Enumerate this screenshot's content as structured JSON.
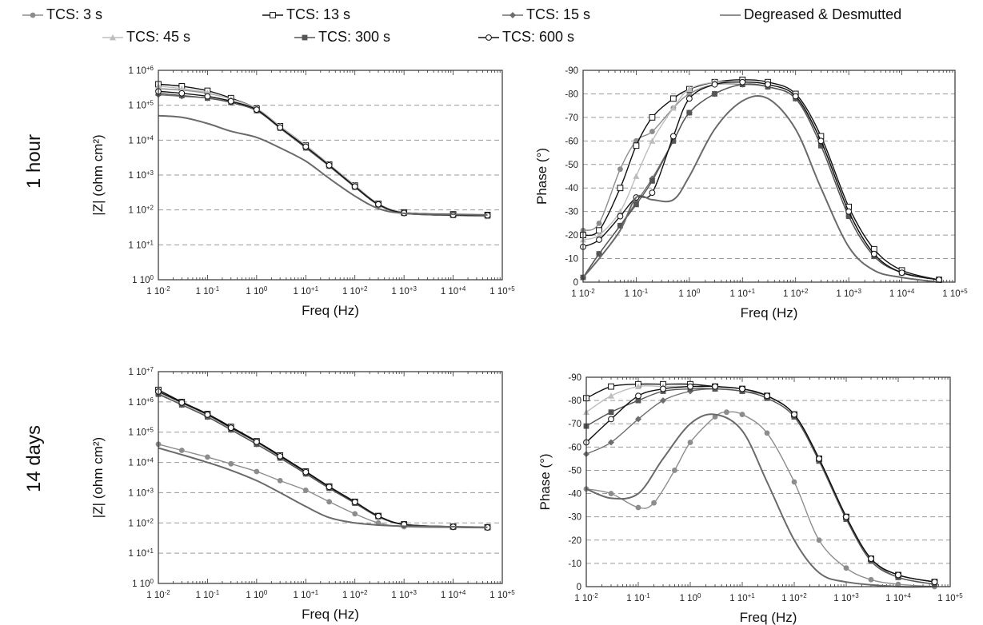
{
  "legend": [
    {
      "name": "TCS: 3 s",
      "color": "#8c8c8c",
      "marker": "circle-filled"
    },
    {
      "name": "TCS: 13 s",
      "color": "#111111",
      "marker": "square-open"
    },
    {
      "name": "TCS: 15 s",
      "color": "#6e6e6e",
      "marker": "diamond-filled"
    },
    {
      "name": "Degreased & Desmutted",
      "color": "#6a6a6a",
      "marker": "none"
    },
    {
      "name": "TCS: 45 s",
      "color": "#bdbdbd",
      "marker": "triangle-filled"
    },
    {
      "name": "TCS: 300 s",
      "color": "#555555",
      "marker": "square-filled"
    },
    {
      "name": "TCS: 600 s",
      "color": "#111111",
      "marker": "circle-open"
    }
  ],
  "row_labels": [
    "1 hour",
    "14 days"
  ],
  "chart_data": [
    {
      "id": "z-1h",
      "type": "line",
      "log_x": true,
      "log_y": true,
      "xlabel": "Freq (Hz)",
      "ylabel": "|Z| (ohm cm²)",
      "xlim": [
        0.01,
        100000
      ],
      "ylim": [
        1,
        1000000
      ],
      "x_ticks": [
        "1 10-2",
        "1 10-1",
        "1 100",
        "1 10+1",
        "1 10+2",
        "1 10+3",
        "1 10+4",
        "1 10+5"
      ],
      "y_ticks": [
        "1 100",
        "1 10+1",
        "1 10+2",
        "1 10+3",
        "1 10+4",
        "1 10+5",
        "1 10+6"
      ],
      "series": [
        {
          "name": "TCS: 3 s",
          "x": [
            0.01,
            0.03,
            0.1,
            0.3,
            1,
            3,
            10,
            30,
            100,
            300,
            1000,
            10000,
            50000
          ],
          "y": [
            300000,
            270000,
            220000,
            150000,
            80000,
            25000,
            7000,
            2000,
            500,
            150,
            85,
            75,
            72
          ]
        },
        {
          "name": "TCS: 13 s",
          "x": [
            0.01,
            0.03,
            0.1,
            0.3,
            1,
            3,
            10,
            30,
            100,
            300,
            1000,
            10000,
            50000
          ],
          "y": [
            400000,
            350000,
            260000,
            160000,
            80000,
            25000,
            7000,
            2000,
            500,
            150,
            85,
            75,
            72
          ]
        },
        {
          "name": "TCS: 15 s",
          "x": [
            0.01,
            0.03,
            0.1,
            0.3,
            1,
            3,
            10,
            30,
            100,
            300,
            1000,
            10000,
            50000
          ],
          "y": [
            200000,
            180000,
            160000,
            120000,
            70000,
            22000,
            6000,
            1800,
            450,
            140,
            80,
            70,
            68
          ]
        },
        {
          "name": "TCS: 45 s",
          "x": [
            0.01,
            0.03,
            0.1,
            0.3,
            1,
            3,
            10,
            30,
            100,
            300,
            1000,
            10000,
            50000
          ],
          "y": [
            350000,
            300000,
            230000,
            150000,
            80000,
            25000,
            7000,
            2000,
            500,
            150,
            85,
            70,
            65
          ]
        },
        {
          "name": "TCS: 300 s",
          "x": [
            0.01,
            0.03,
            0.1,
            0.3,
            1,
            3,
            10,
            30,
            100,
            300,
            1000,
            10000,
            50000
          ],
          "y": [
            220000,
            190000,
            160000,
            120000,
            70000,
            22000,
            6000,
            1800,
            450,
            140,
            80,
            70,
            68
          ]
        },
        {
          "name": "TCS: 600 s",
          "x": [
            0.01,
            0.03,
            0.1,
            0.3,
            1,
            3,
            10,
            30,
            100,
            300,
            1000,
            10000,
            50000
          ],
          "y": [
            250000,
            220000,
            180000,
            130000,
            75000,
            23000,
            6500,
            1900,
            470,
            145,
            82,
            72,
            70
          ]
        },
        {
          "name": "Degreased & Desmutted",
          "x": [
            0.01,
            0.03,
            0.1,
            0.3,
            1,
            3,
            10,
            30,
            100,
            300,
            1000,
            10000,
            50000
          ],
          "y": [
            50000,
            45000,
            30000,
            18000,
            12000,
            6000,
            2500,
            800,
            250,
            110,
            80,
            75,
            72
          ]
        }
      ]
    },
    {
      "id": "ph-1h",
      "type": "line",
      "log_x": true,
      "xlabel": "Freq (Hz)",
      "ylabel": "Phase (°)",
      "xlim": [
        0.01,
        100000
      ],
      "ylim": [
        0,
        -90
      ],
      "x_ticks": [
        "1 10-2",
        "1 10-1",
        "1 100",
        "1 10+1",
        "1 10+2",
        "1 10+3",
        "1 10+4",
        "1 10+5"
      ],
      "y_ticks": [
        "0",
        "-10",
        "-20",
        "-30",
        "-40",
        "-50",
        "-60",
        "-70",
        "-80",
        "-90"
      ],
      "series": [
        {
          "name": "TCS: 3 s",
          "x": [
            0.01,
            0.02,
            0.05,
            0.1,
            0.2,
            0.5,
            1,
            3,
            10,
            30,
            100,
            300,
            1000,
            3000,
            10000,
            50000
          ],
          "y": [
            -22,
            -25,
            -48,
            -60,
            -64,
            -74,
            -80,
            -84,
            -84,
            -83,
            -78,
            -60,
            -30,
            -12,
            -4,
            -1
          ]
        },
        {
          "name": "TCS: 13 s",
          "x": [
            0.01,
            0.02,
            0.05,
            0.1,
            0.2,
            0.5,
            1,
            3,
            10,
            30,
            100,
            300,
            1000,
            3000,
            10000,
            50000
          ],
          "y": [
            -20,
            -22,
            -40,
            -58,
            -70,
            -78,
            -82,
            -85,
            -86,
            -85,
            -80,
            -62,
            -32,
            -14,
            -5,
            -1
          ]
        },
        {
          "name": "TCS: 15 s",
          "x": [
            0.01,
            0.02,
            0.05,
            0.1,
            0.2,
            0.5,
            1,
            3,
            10,
            30,
            100,
            300,
            1000,
            3000,
            10000,
            50000
          ],
          "y": [
            -2,
            -12,
            -24,
            -34,
            -44,
            -60,
            -72,
            -80,
            -84,
            -83,
            -78,
            -58,
            -28,
            -11,
            -4,
            -1
          ]
        },
        {
          "name": "TCS: 45 s",
          "x": [
            0.01,
            0.02,
            0.05,
            0.1,
            0.2,
            0.5,
            1,
            3,
            10,
            30,
            100,
            300,
            1000,
            3000,
            10000,
            50000
          ],
          "y": [
            -18,
            -20,
            -30,
            -45,
            -60,
            -74,
            -82,
            -85,
            -85,
            -84,
            -79,
            -60,
            -30,
            -12,
            -4,
            -1
          ]
        },
        {
          "name": "TCS: 300 s",
          "x": [
            0.01,
            0.02,
            0.05,
            0.1,
            0.2,
            0.5,
            1,
            3,
            10,
            30,
            100,
            300,
            1000,
            3000,
            10000,
            50000
          ],
          "y": [
            -2,
            -12,
            -24,
            -33,
            -43,
            -60,
            -72,
            -80,
            -84,
            -83,
            -78,
            -58,
            -28,
            -11,
            -4,
            -1
          ]
        },
        {
          "name": "TCS: 600 s",
          "x": [
            0.01,
            0.02,
            0.05,
            0.1,
            0.2,
            0.5,
            1,
            3,
            10,
            30,
            100,
            300,
            1000,
            3000,
            10000,
            50000
          ],
          "y": [
            -15,
            -18,
            -28,
            -36,
            -38,
            -62,
            -78,
            -84,
            -85,
            -84,
            -79,
            -60,
            -30,
            -12,
            -4,
            -1
          ]
        },
        {
          "name": "Degreased & Desmutted",
          "x": [
            0.01,
            0.02,
            0.05,
            0.1,
            0.2,
            0.5,
            1,
            3,
            10,
            30,
            100,
            300,
            1000,
            3000,
            10000,
            50000
          ],
          "y": [
            -2,
            -10,
            -22,
            -36,
            -35,
            -35,
            -45,
            -65,
            -77,
            -78,
            -65,
            -40,
            -15,
            -5,
            -2,
            0
          ]
        }
      ]
    },
    {
      "id": "z-14d",
      "type": "line",
      "log_x": true,
      "log_y": true,
      "xlabel": "Freq (Hz)",
      "ylabel": "|Z| (ohm cm²)",
      "xlim": [
        0.01,
        100000
      ],
      "ylim": [
        1,
        10000000
      ],
      "x_ticks": [
        "1 10-2",
        "1 10-1",
        "1 100",
        "1 10+1",
        "1 10+2",
        "1 10+3",
        "1 10+4",
        "1 10+5"
      ],
      "y_ticks": [
        "1 100",
        "1 10+1",
        "1 10+2",
        "1 10+3",
        "1 10+4",
        "1 10+5",
        "1 10+6",
        "1 10+7"
      ],
      "series": [
        {
          "name": "TCS: 3 s",
          "x": [
            0.01,
            0.03,
            0.1,
            0.3,
            1,
            3,
            10,
            30,
            100,
            300,
            1000,
            10000,
            50000
          ],
          "y": [
            40000,
            25000,
            15000,
            9000,
            5000,
            2500,
            1200,
            500,
            200,
            100,
            75,
            70,
            68
          ]
        },
        {
          "name": "TCS: 13 s",
          "x": [
            0.01,
            0.03,
            0.1,
            0.3,
            1,
            3,
            10,
            30,
            100,
            300,
            1000,
            10000,
            50000
          ],
          "y": [
            2500000,
            1000000,
            400000,
            150000,
            50000,
            17000,
            5000,
            1600,
            500,
            170,
            90,
            75,
            72
          ]
        },
        {
          "name": "TCS: 15 s",
          "x": [
            0.01,
            0.03,
            0.1,
            0.3,
            1,
            3,
            10,
            30,
            100,
            300,
            1000,
            10000,
            50000
          ],
          "y": [
            1800000,
            800000,
            320000,
            120000,
            40000,
            14000,
            4200,
            1400,
            450,
            160,
            88,
            74,
            70
          ]
        },
        {
          "name": "TCS: 45 s",
          "x": [
            0.01,
            0.03,
            0.1,
            0.3,
            1,
            3,
            10,
            30,
            100,
            300,
            1000,
            10000,
            50000
          ],
          "y": [
            2000000,
            900000,
            350000,
            130000,
            45000,
            15000,
            4500,
            1500,
            480,
            165,
            88,
            74,
            70
          ]
        },
        {
          "name": "TCS: 300 s",
          "x": [
            0.01,
            0.03,
            0.1,
            0.3,
            1,
            3,
            10,
            30,
            100,
            300,
            1000,
            10000,
            50000
          ],
          "y": [
            1800000,
            800000,
            320000,
            120000,
            40000,
            14000,
            4200,
            1400,
            450,
            160,
            88,
            74,
            70
          ]
        },
        {
          "name": "TCS: 600 s",
          "x": [
            0.01,
            0.03,
            0.1,
            0.3,
            1,
            3,
            10,
            30,
            100,
            300,
            1000,
            10000,
            50000
          ],
          "y": [
            2200000,
            950000,
            380000,
            140000,
            48000,
            16000,
            4800,
            1550,
            490,
            168,
            89,
            75,
            71
          ]
        },
        {
          "name": "Degreased & Desmutted",
          "x": [
            0.01,
            0.03,
            0.1,
            0.3,
            1,
            3,
            10,
            30,
            100,
            300,
            1000,
            10000,
            50000
          ],
          "y": [
            30000,
            18000,
            10000,
            5500,
            2500,
            1000,
            350,
            150,
            100,
            85,
            78,
            75,
            72
          ]
        }
      ]
    },
    {
      "id": "ph-14d",
      "type": "line",
      "log_x": true,
      "xlabel": "Freq (Hz)",
      "ylabel": "Phase (°)",
      "xlim": [
        0.01,
        100000
      ],
      "ylim": [
        0,
        -90
      ],
      "x_ticks": [
        "1 10-2",
        "1 10-1",
        "1 100",
        "1 10+1",
        "1 10+2",
        "1 10+3",
        "1 10+4",
        "1 10+5"
      ],
      "y_ticks": [
        "0",
        "-10",
        "-20",
        "-30",
        "-40",
        "-50",
        "-60",
        "-70",
        "-80",
        "-90"
      ],
      "series": [
        {
          "name": "TCS: 3 s",
          "x": [
            0.01,
            0.03,
            0.1,
            0.2,
            0.5,
            1,
            3,
            5,
            10,
            30,
            100,
            300,
            1000,
            3000,
            10000,
            50000
          ],
          "y": [
            -42,
            -40,
            -34,
            -36,
            -50,
            -62,
            -73,
            -75,
            -74,
            -66,
            -45,
            -20,
            -8,
            -3,
            -1,
            0
          ]
        },
        {
          "name": "TCS: 13 s",
          "x": [
            0.01,
            0.03,
            0.1,
            0.3,
            1,
            3,
            10,
            30,
            100,
            300,
            1000,
            3000,
            10000,
            50000
          ],
          "y": [
            -81,
            -86,
            -87,
            -87,
            -87,
            -86,
            -85,
            -82,
            -74,
            -55,
            -30,
            -12,
            -5,
            -2
          ]
        },
        {
          "name": "TCS: 15 s",
          "x": [
            0.01,
            0.03,
            0.1,
            0.3,
            1,
            3,
            10,
            30,
            100,
            300,
            1000,
            3000,
            10000,
            50000
          ],
          "y": [
            -57,
            -62,
            -72,
            -80,
            -84,
            -85,
            -84,
            -82,
            -74,
            -55,
            -30,
            -12,
            -4,
            -1
          ]
        },
        {
          "name": "TCS: 45 s",
          "x": [
            0.01,
            0.03,
            0.1,
            0.3,
            1,
            3,
            10,
            30,
            100,
            300,
            1000,
            3000,
            10000,
            50000
          ],
          "y": [
            -75,
            -82,
            -86,
            -86,
            -86,
            -85,
            -84,
            -81,
            -73,
            -54,
            -29,
            -11,
            -4,
            -1
          ]
        },
        {
          "name": "TCS: 300 s",
          "x": [
            0.01,
            0.03,
            0.1,
            0.3,
            1,
            3,
            10,
            30,
            100,
            300,
            1000,
            3000,
            10000,
            50000
          ],
          "y": [
            -69,
            -75,
            -80,
            -84,
            -85,
            -85,
            -84,
            -81,
            -73,
            -54,
            -29,
            -11,
            -4,
            -1
          ]
        },
        {
          "name": "TCS: 600 s",
          "x": [
            0.01,
            0.03,
            0.1,
            0.3,
            1,
            3,
            10,
            30,
            100,
            300,
            1000,
            3000,
            10000,
            50000
          ],
          "y": [
            -62,
            -72,
            -82,
            -85,
            -86,
            -86,
            -85,
            -82,
            -74,
            -55,
            -30,
            -12,
            -5,
            -2
          ]
        },
        {
          "name": "Degreased & Desmutted",
          "x": [
            0.01,
            0.03,
            0.1,
            0.3,
            1,
            3,
            10,
            30,
            100,
            300,
            1000,
            10000,
            50000
          ],
          "y": [
            -42,
            -38,
            -40,
            -55,
            -70,
            -74,
            -67,
            -45,
            -20,
            -6,
            -2,
            0,
            0
          ]
        }
      ]
    }
  ]
}
